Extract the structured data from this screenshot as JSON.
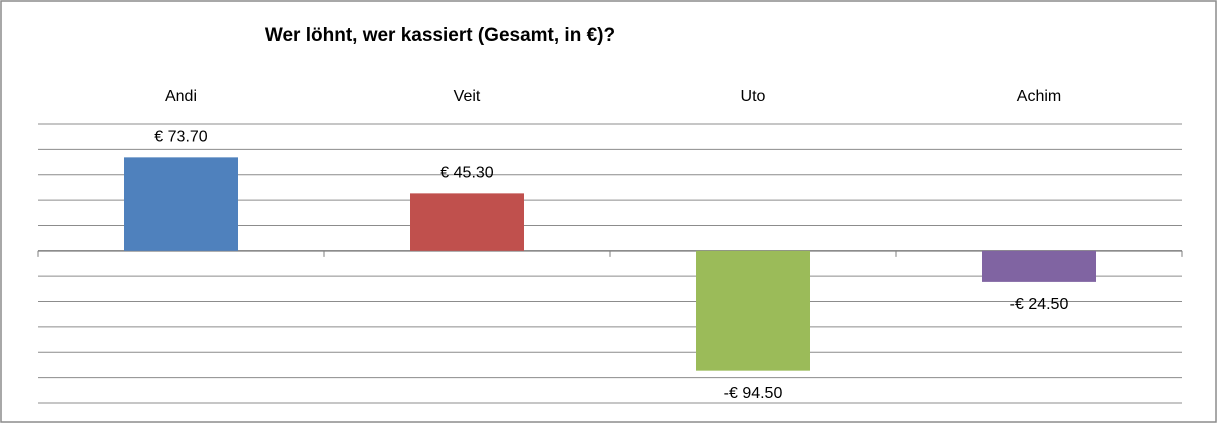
{
  "chart_data": {
    "type": "bar",
    "title": "Wer löhnt, wer kassiert (Gesamt, in €)?",
    "categories": [
      "Andi",
      "Veit",
      "Uto",
      "Achim"
    ],
    "values": [
      73.7,
      45.3,
      -94.5,
      -24.5
    ],
    "value_labels": [
      "€ 73.70",
      "€ 45.30",
      "-€ 94.50",
      "-€ 24.50"
    ],
    "colors": [
      "#4f81bd",
      "#c0504d",
      "#9bbb59",
      "#8064a2"
    ],
    "ylim": [
      -120,
      100
    ],
    "yticks": [
      -120,
      -100,
      -80,
      -60,
      -40,
      -20,
      0,
      20,
      40,
      60,
      80,
      100
    ],
    "grid": true
  }
}
